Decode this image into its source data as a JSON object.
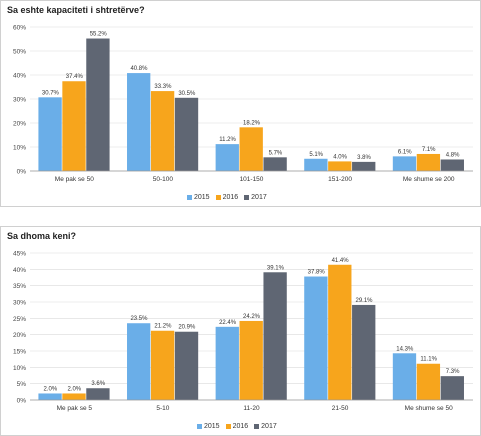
{
  "colors": {
    "2015": "#6aaee8",
    "2016": "#f7a51c",
    "2017": "#5f6673"
  },
  "chart_data": [
    {
      "type": "bar",
      "title": "Sa eshte kapaciteti i shtretërve?",
      "categories": [
        "Me pak se 50",
        "50-100",
        "101-150",
        "151-200",
        "Me shume se 200"
      ],
      "ylim": [
        0,
        60
      ],
      "yticks": [
        "0%",
        "10%",
        "20%",
        "30%",
        "40%",
        "50%",
        "60%"
      ],
      "ytick_values": [
        0,
        10,
        20,
        30,
        40,
        50,
        60
      ],
      "grid": true,
      "legend_position": "bottom-center",
      "series": [
        {
          "name": "2015",
          "values": [
            30.7,
            40.8,
            11.2,
            5.1,
            6.1
          ],
          "labels": [
            "30.7%",
            "40.8%",
            "11.2%",
            "5.1%",
            "6.1%"
          ]
        },
        {
          "name": "2016",
          "values": [
            37.4,
            33.3,
            18.2,
            4.0,
            7.1
          ],
          "labels": [
            "37.4%",
            "33.3%",
            "18.2%",
            "4.0%",
            "7.1%"
          ]
        },
        {
          "name": "2017",
          "values": [
            55.2,
            30.5,
            5.7,
            3.8,
            4.8
          ],
          "labels": [
            "55.2%",
            "30.5%",
            "5.7%",
            "3.8%",
            "4.8%"
          ]
        }
      ]
    },
    {
      "type": "bar",
      "title": "Sa dhoma keni?",
      "categories": [
        "Me pak se 5",
        "5-10",
        "11-20",
        "21-50",
        "Me shume se 50"
      ],
      "ylim": [
        0,
        45
      ],
      "yticks": [
        "0%",
        "5%",
        "10%",
        "15%",
        "20%",
        "25%",
        "30%",
        "35%",
        "40%",
        "45%"
      ],
      "ytick_values": [
        0,
        5,
        10,
        15,
        20,
        25,
        30,
        35,
        40,
        45
      ],
      "grid": true,
      "legend_position": "bottom-center",
      "series": [
        {
          "name": "2015",
          "values": [
            2.0,
            23.5,
            22.4,
            37.8,
            14.3
          ],
          "labels": [
            "2.0%",
            "23.5%",
            "22.4%",
            "37.8%",
            "14.3%"
          ]
        },
        {
          "name": "2016",
          "values": [
            2.0,
            21.2,
            24.2,
            41.4,
            11.1
          ],
          "labels": [
            "2.0%",
            "21.2%",
            "24.2%",
            "41.4%",
            "11.1%"
          ]
        },
        {
          "name": "2017",
          "values": [
            3.6,
            20.9,
            39.1,
            29.1,
            7.3
          ],
          "labels": [
            "3.6%",
            "20.9%",
            "39.1%",
            "29.1%",
            "7.3%"
          ]
        }
      ]
    }
  ]
}
